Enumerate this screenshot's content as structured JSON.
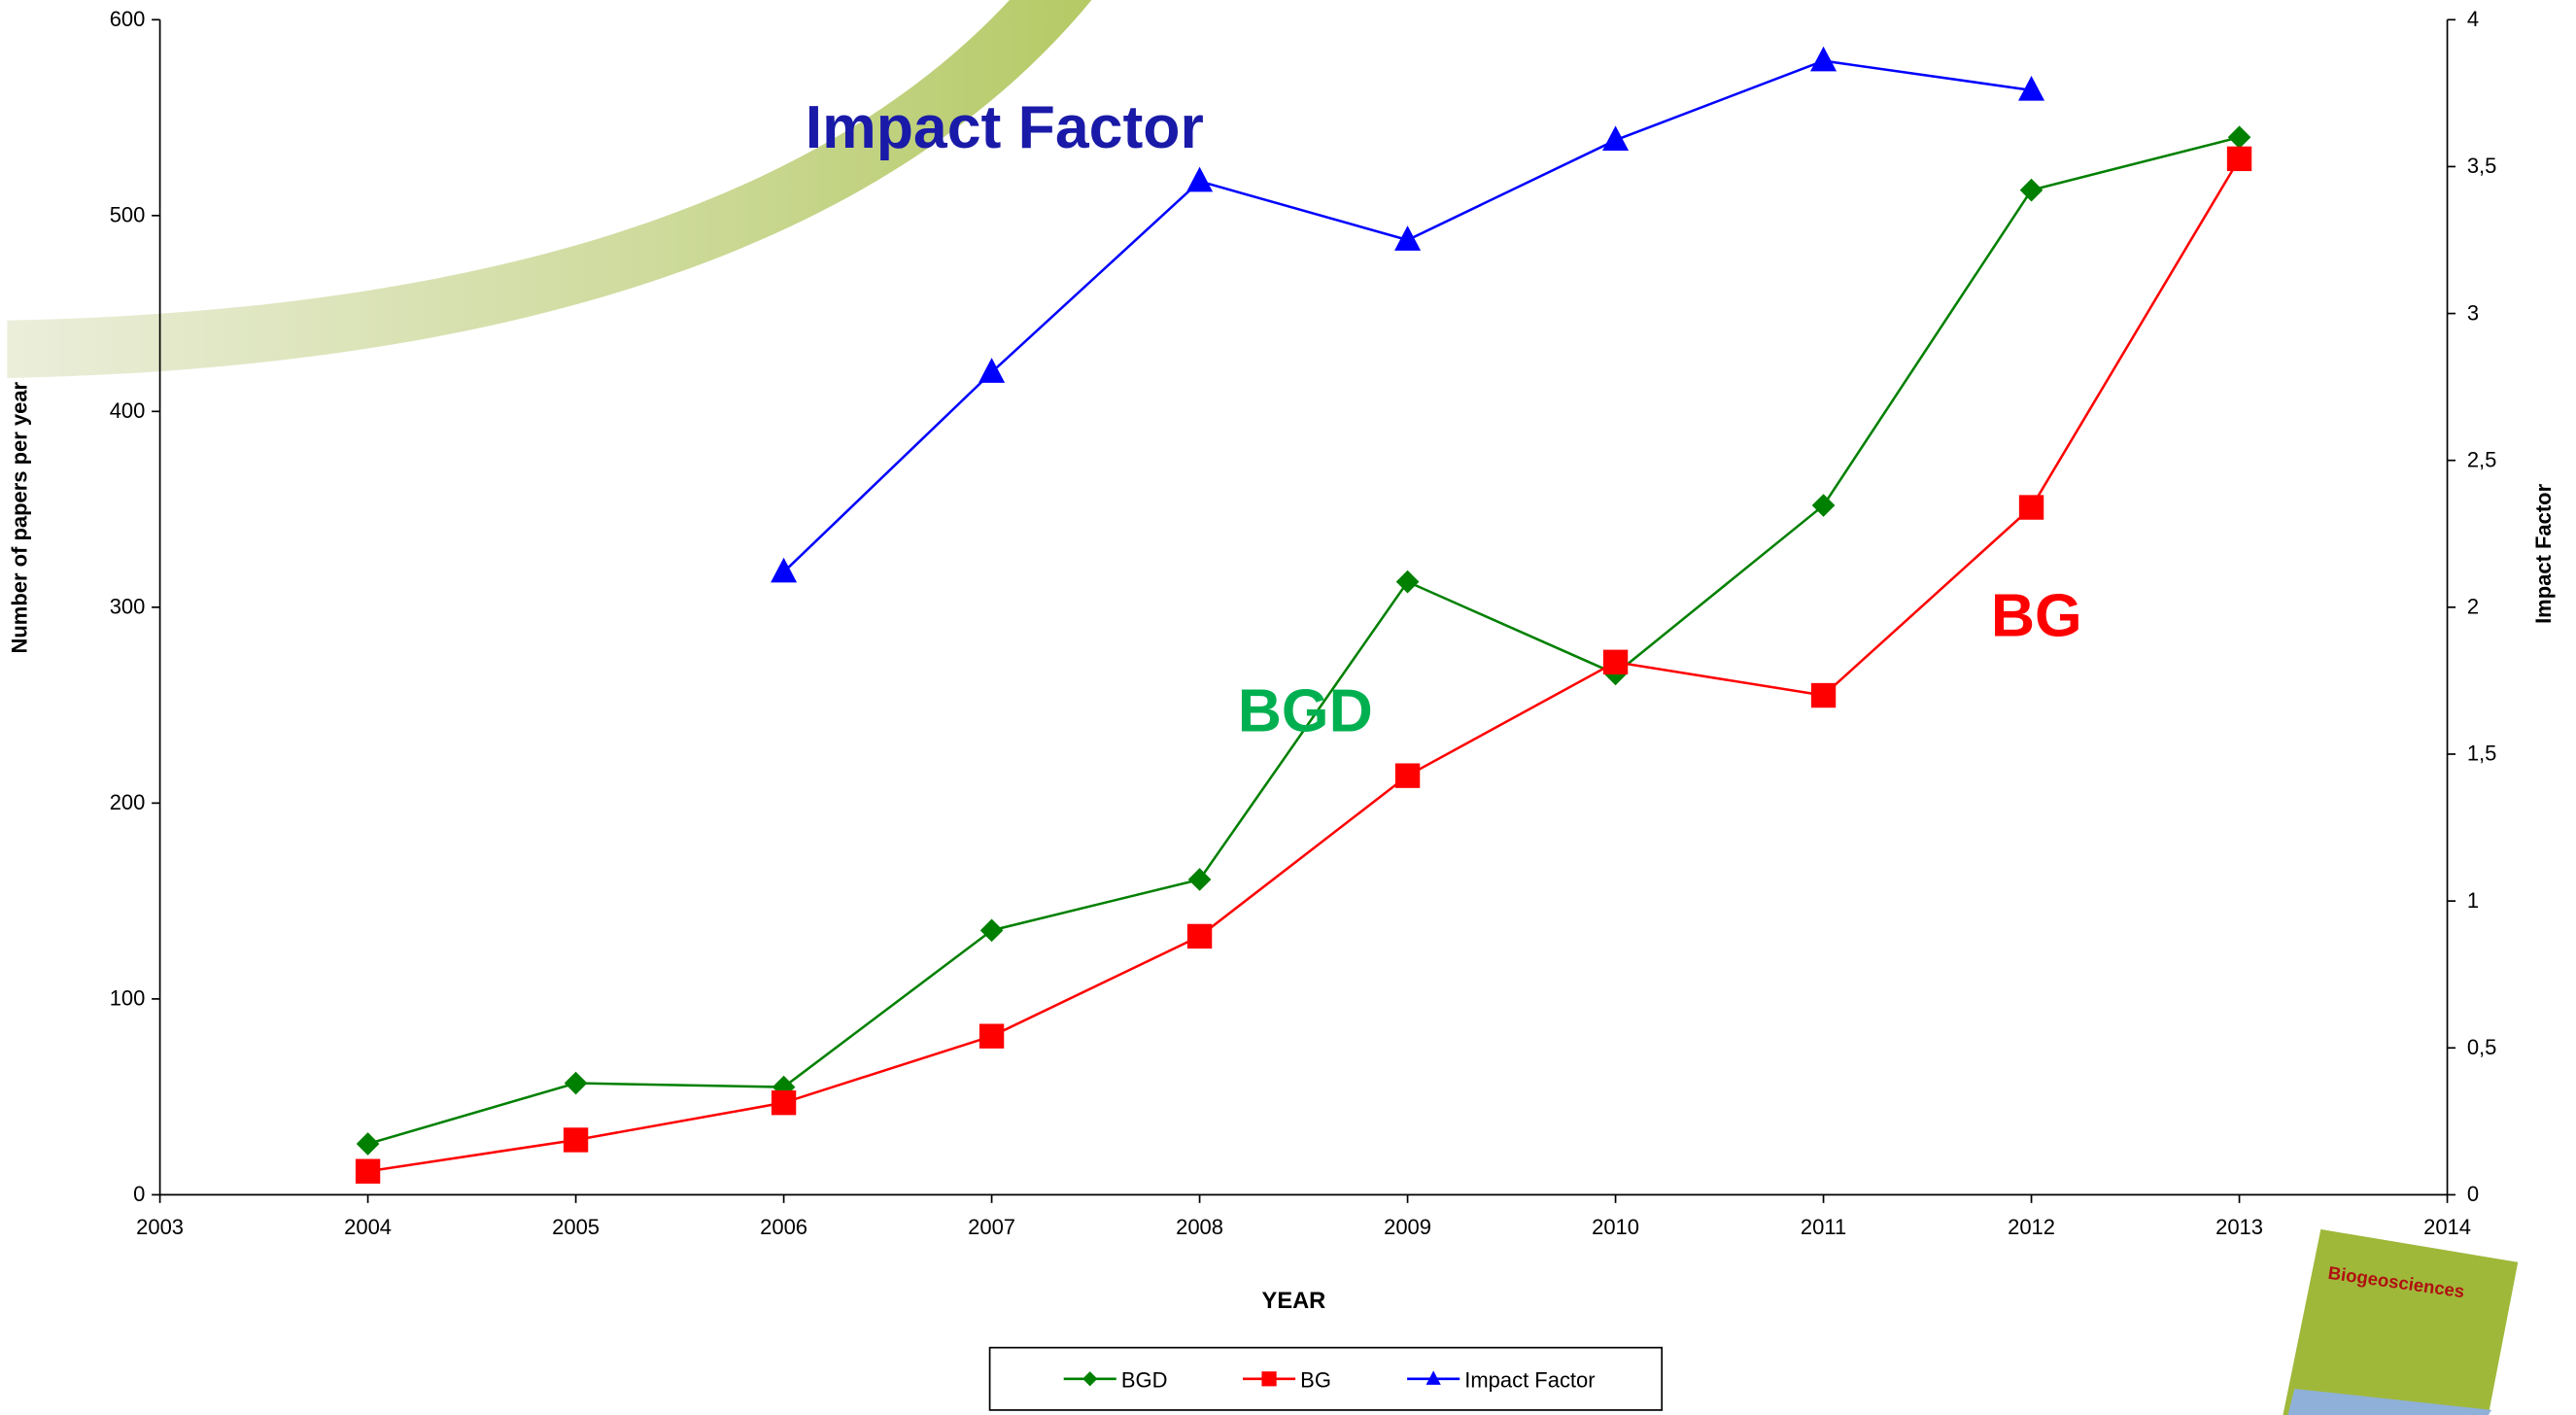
{
  "chart_data": {
    "type": "line",
    "x_label": "YEAR",
    "y_label": "Number of papers per year",
    "y2_label": "Impact Factor",
    "x": [
      2004,
      2005,
      2006,
      2007,
      2008,
      2009,
      2010,
      2011,
      2012,
      2013
    ],
    "xlim": [
      2003,
      2014
    ],
    "xticks": [
      2003,
      2004,
      2005,
      2006,
      2007,
      2008,
      2009,
      2010,
      2011,
      2012,
      2013,
      2014
    ],
    "ylim": [
      0,
      600
    ],
    "yticks": [
      0,
      100,
      200,
      300,
      400,
      500,
      600
    ],
    "y2lim": [
      0,
      4
    ],
    "y2ticks": [
      0,
      {
        "value": 0.5,
        "label": "0,5"
      },
      1,
      {
        "value": 1.5,
        "label": "1,5"
      },
      2,
      {
        "value": 2.5,
        "label": "2,5"
      },
      3,
      {
        "value": 3.5,
        "label": "3,5"
      },
      4
    ],
    "series": [
      {
        "name": "BGD",
        "color": "#008000",
        "marker": "diamond",
        "values": [
          26,
          57,
          55,
          135,
          161,
          313,
          266,
          352,
          513,
          540
        ]
      },
      {
        "name": "BG",
        "color": "#ff0000",
        "marker": "square",
        "values": [
          12,
          28,
          47,
          81,
          132,
          214,
          272,
          255,
          351,
          529
        ]
      },
      {
        "name": "Impact Factor",
        "color": "#0000ff",
        "marker": "triangle",
        "axis": "y2",
        "values": [
          null,
          null,
          2.12,
          2.8,
          3.45,
          3.25,
          3.59,
          3.86,
          3.76,
          null
        ]
      }
    ],
    "annotations": [
      {
        "text": "Impact Factor",
        "color": "#1a1aa8"
      },
      {
        "text": "BGD",
        "color": "#00b050"
      },
      {
        "text": "BG",
        "color": "#ff0000"
      }
    ],
    "cover_title": "Biogeosciences"
  }
}
